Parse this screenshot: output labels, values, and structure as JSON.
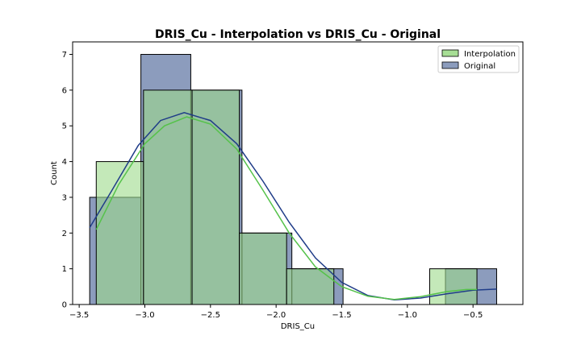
{
  "chart_data": {
    "type": "histogram",
    "title": "DRIS_Cu - Interpolation vs DRIS_Cu - Original",
    "xlabel": "DRIS_Cu",
    "ylabel": "Count",
    "xlim": [
      -3.55,
      -0.12
    ],
    "ylim": [
      0,
      7.35
    ],
    "xticks": [
      -3.5,
      -3.0,
      -2.5,
      -2.0,
      -1.5,
      -1.0,
      -0.5
    ],
    "xtick_labels": [
      "−3.5",
      "−3.0",
      "−2.5",
      "−2.0",
      "−1.5",
      "−1.0",
      "−0.5"
    ],
    "yticks": [
      0,
      1,
      2,
      3,
      4,
      5,
      6,
      7
    ],
    "ytick_labels": [
      "0",
      "1",
      "2",
      "3",
      "4",
      "5",
      "6",
      "7"
    ],
    "legend_position": "top-right",
    "grid": false,
    "series": [
      {
        "name": "Interpolation",
        "fill": "#9dda8a",
        "kde_color": "#55c24a",
        "bins": [
          {
            "x0": -3.37,
            "x1": -3.01,
            "count": 4
          },
          {
            "x0": -3.01,
            "x1": -2.64,
            "count": 6
          },
          {
            "x0": -2.64,
            "x1": -2.28,
            "count": 6
          },
          {
            "x0": -2.28,
            "x1": -1.92,
            "count": 2
          },
          {
            "x0": -1.92,
            "x1": -1.56,
            "count": 1
          },
          {
            "x0": -1.56,
            "x1": -1.19,
            "count": 0
          },
          {
            "x0": -1.19,
            "x1": -0.83,
            "count": 0
          },
          {
            "x0": -0.83,
            "x1": -0.47,
            "count": 1
          }
        ],
        "kde": [
          [
            -3.37,
            2.1
          ],
          [
            -3.2,
            3.35
          ],
          [
            -3.0,
            4.5
          ],
          [
            -2.85,
            5.0
          ],
          [
            -2.68,
            5.25
          ],
          [
            -2.5,
            5.05
          ],
          [
            -2.3,
            4.35
          ],
          [
            -2.1,
            3.2
          ],
          [
            -1.9,
            2.0
          ],
          [
            -1.7,
            1.05
          ],
          [
            -1.5,
            0.5
          ],
          [
            -1.3,
            0.23
          ],
          [
            -1.1,
            0.14
          ],
          [
            -0.9,
            0.22
          ],
          [
            -0.7,
            0.36
          ],
          [
            -0.55,
            0.42
          ],
          [
            -0.47,
            0.42
          ]
        ]
      },
      {
        "name": "Original",
        "fill": "#2d4a86",
        "kde_color": "#1f3c88",
        "bins": [
          {
            "x0": -3.42,
            "x1": -3.03,
            "count": 3
          },
          {
            "x0": -3.03,
            "x1": -2.65,
            "count": 7
          },
          {
            "x0": -2.65,
            "x1": -2.26,
            "count": 6
          },
          {
            "x0": -2.26,
            "x1": -1.88,
            "count": 2
          },
          {
            "x0": -1.88,
            "x1": -1.49,
            "count": 1
          },
          {
            "x0": -1.49,
            "x1": -1.1,
            "count": 0
          },
          {
            "x0": -1.1,
            "x1": -0.71,
            "count": 0
          },
          {
            "x0": -0.71,
            "x1": -0.32,
            "count": 1
          }
        ],
        "kde": [
          [
            -3.42,
            2.15
          ],
          [
            -3.25,
            3.2
          ],
          [
            -3.05,
            4.45
          ],
          [
            -2.88,
            5.15
          ],
          [
            -2.7,
            5.37
          ],
          [
            -2.5,
            5.15
          ],
          [
            -2.3,
            4.5
          ],
          [
            -2.1,
            3.45
          ],
          [
            -1.9,
            2.3
          ],
          [
            -1.7,
            1.3
          ],
          [
            -1.5,
            0.62
          ],
          [
            -1.3,
            0.25
          ],
          [
            -1.1,
            0.13
          ],
          [
            -0.9,
            0.18
          ],
          [
            -0.7,
            0.3
          ],
          [
            -0.5,
            0.4
          ],
          [
            -0.32,
            0.43
          ]
        ]
      }
    ]
  }
}
